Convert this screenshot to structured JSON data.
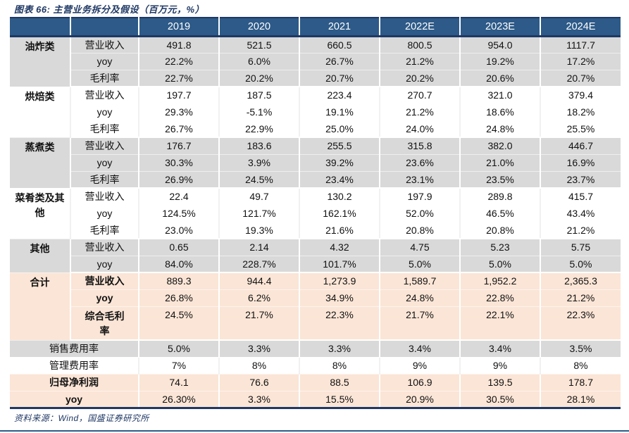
{
  "title": "图表 66: 主营业务拆分及假设（百万元，%）",
  "source": "资料来源：Wind，国盛证券研究所",
  "colors": {
    "header_bg": "#2D5A88",
    "navy_divider": "#1F3864",
    "row_gray": "#D9D9D9",
    "row_orange": "#FBE5D6",
    "title_text": "#1F3864",
    "bottom_rule": "#2D5A88"
  },
  "table": {
    "years": [
      "2019",
      "2020",
      "2021",
      "2022E",
      "2023E",
      "2024E"
    ],
    "groups": [
      {
        "category": "油炸类",
        "shade": "gray",
        "bold_labels": false,
        "rows": [
          {
            "metric": "营业收入",
            "values": [
              "491.8",
              "521.5",
              "660.5",
              "800.5",
              "954.0",
              "1117.7"
            ]
          },
          {
            "metric": "yoy",
            "values": [
              "22.2%",
              "6.0%",
              "26.7%",
              "21.2%",
              "19.2%",
              "17.2%"
            ]
          },
          {
            "metric": "毛利率",
            "values": [
              "22.7%",
              "20.2%",
              "20.7%",
              "20.2%",
              "20.6%",
              "20.7%"
            ]
          }
        ]
      },
      {
        "category": "烘焙类",
        "shade": "white",
        "bold_labels": false,
        "rows": [
          {
            "metric": "营业收入",
            "values": [
              "197.7",
              "187.5",
              "223.4",
              "270.7",
              "321.0",
              "379.4"
            ]
          },
          {
            "metric": "yoy",
            "values": [
              "29.3%",
              "-5.1%",
              "19.1%",
              "21.2%",
              "18.6%",
              "18.2%"
            ]
          },
          {
            "metric": "毛利率",
            "values": [
              "26.7%",
              "22.9%",
              "25.0%",
              "24.0%",
              "24.8%",
              "25.5%"
            ]
          }
        ]
      },
      {
        "category": "蒸煮类",
        "shade": "gray",
        "bold_labels": false,
        "rows": [
          {
            "metric": "营业收入",
            "values": [
              "176.7",
              "183.6",
              "255.5",
              "315.8",
              "382.0",
              "446.7"
            ]
          },
          {
            "metric": "yoy",
            "values": [
              "30.3%",
              "3.9%",
              "39.2%",
              "23.6%",
              "21.0%",
              "16.9%"
            ]
          },
          {
            "metric": "毛利率",
            "values": [
              "26.9%",
              "24.5%",
              "23.4%",
              "23.1%",
              "23.5%",
              "23.7%"
            ]
          }
        ]
      },
      {
        "category": "菜肴类及其他",
        "shade": "white",
        "bold_labels": false,
        "rows": [
          {
            "metric": "营业收入",
            "values": [
              "22.4",
              "49.7",
              "130.2",
              "197.9",
              "289.8",
              "415.7"
            ]
          },
          {
            "metric": "yoy",
            "values": [
              "124.5%",
              "121.7%",
              "162.1%",
              "52.0%",
              "46.5%",
              "43.4%"
            ]
          },
          {
            "metric": "毛利率",
            "values": [
              "23.0%",
              "19.3%",
              "21.6%",
              "20.8%",
              "20.8%",
              "21.2%"
            ]
          }
        ]
      },
      {
        "category": "其他",
        "shade": "gray",
        "bold_labels": false,
        "rows": [
          {
            "metric": "营业收入",
            "values": [
              "0.65",
              "2.14",
              "4.32",
              "4.75",
              "5.23",
              "5.75"
            ]
          },
          {
            "metric": "yoy",
            "values": [
              "84.0%",
              "228.7%",
              "101.7%",
              "5.0%",
              "5.0%",
              "5.0%"
            ]
          }
        ]
      },
      {
        "category": "合计",
        "shade": "orange",
        "bold_labels": true,
        "rows": [
          {
            "metric": "营业收入",
            "values": [
              "889.3",
              "944.4",
              "1,273.9",
              "1,589.7",
              "1,952.2",
              "2,365.3"
            ]
          },
          {
            "metric": "yoy",
            "values": [
              "26.8%",
              "6.2%",
              "34.9%",
              "24.8%",
              "22.8%",
              "21.2%"
            ]
          },
          {
            "metric": "综合毛利率",
            "values": [
              "24.5%",
              "21.7%",
              "22.3%",
              "21.7%",
              "22.1%",
              "22.3%"
            ],
            "tall": true
          }
        ]
      }
    ],
    "summary_rows": [
      {
        "label": "销售费用率",
        "shade": "gray",
        "bold": false,
        "values": [
          "5.0%",
          "3.3%",
          "3.3%",
          "3.4%",
          "3.4%",
          "3.5%"
        ]
      },
      {
        "label": "管理费用率",
        "shade": "white",
        "bold": false,
        "values": [
          "7%",
          "8%",
          "8%",
          "9%",
          "9%",
          "8%"
        ]
      },
      {
        "label": "归母净利润",
        "shade": "orange",
        "bold": true,
        "values": [
          "74.1",
          "76.6",
          "88.5",
          "106.9",
          "139.5",
          "178.7"
        ]
      },
      {
        "label": "yoy",
        "shade": "orange",
        "bold": true,
        "values": [
          "26.30%",
          "3.3%",
          "15.5%",
          "20.9%",
          "30.5%",
          "28.1%"
        ]
      }
    ]
  }
}
